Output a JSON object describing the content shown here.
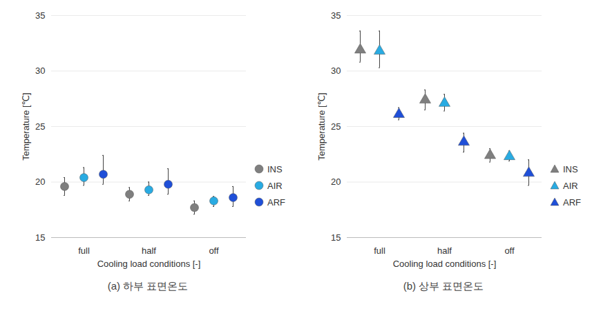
{
  "chart_data": [
    {
      "type": "scatter",
      "caption": "(a) 하부 표면온도",
      "xlabel": "Cooling load conditions [-]",
      "ylabel": "Temperature [℃]",
      "categories": [
        "full",
        "half",
        "off"
      ],
      "ylim": [
        15,
        35
      ],
      "yticks": [
        15,
        20,
        25,
        30,
        35
      ],
      "grid": true,
      "legend": "right",
      "series": [
        {
          "name": "INS",
          "color": "#7f7f7f",
          "marker": "circle",
          "values": [
            19.6,
            18.9,
            17.7
          ],
          "lower": [
            18.8,
            18.3,
            17.1
          ],
          "upper": [
            20.4,
            19.5,
            18.3
          ]
        },
        {
          "name": "AIR",
          "color": "#29abe2",
          "marker": "circle",
          "values": [
            20.4,
            19.3,
            18.3
          ],
          "lower": [
            19.7,
            18.8,
            17.8
          ],
          "upper": [
            21.3,
            20.0,
            18.7
          ]
        },
        {
          "name": "ARF",
          "color": "#1f4fd8",
          "marker": "circle",
          "values": [
            20.7,
            19.8,
            18.6
          ],
          "lower": [
            19.8,
            18.9,
            17.8
          ],
          "upper": [
            22.4,
            21.2,
            19.6
          ]
        }
      ]
    },
    {
      "type": "scatter",
      "caption": "(b) 상부 표면온도",
      "xlabel": "Cooling load conditions [-]",
      "ylabel": "Temperature [℃]",
      "categories": [
        "full",
        "half",
        "off"
      ],
      "ylim": [
        15,
        35
      ],
      "yticks": [
        15,
        20,
        25,
        30,
        35
      ],
      "grid": true,
      "legend": "right",
      "series": [
        {
          "name": "INS",
          "color": "#7f7f7f",
          "marker": "triangle",
          "values": [
            31.9,
            27.4,
            22.4
          ],
          "lower": [
            30.8,
            26.5,
            21.8
          ],
          "upper": [
            33.6,
            28.3,
            23.0
          ]
        },
        {
          "name": "AIR",
          "color": "#29abe2",
          "marker": "triangle",
          "values": [
            31.8,
            27.1,
            22.3
          ],
          "lower": [
            30.3,
            26.4,
            21.9
          ],
          "upper": [
            33.6,
            27.9,
            22.8
          ]
        },
        {
          "name": "ARF",
          "color": "#1f4fd8",
          "marker": "triangle",
          "values": [
            26.1,
            23.6,
            20.8
          ],
          "lower": [
            25.6,
            22.7,
            19.7
          ],
          "upper": [
            26.7,
            24.4,
            22.0
          ]
        }
      ]
    }
  ]
}
